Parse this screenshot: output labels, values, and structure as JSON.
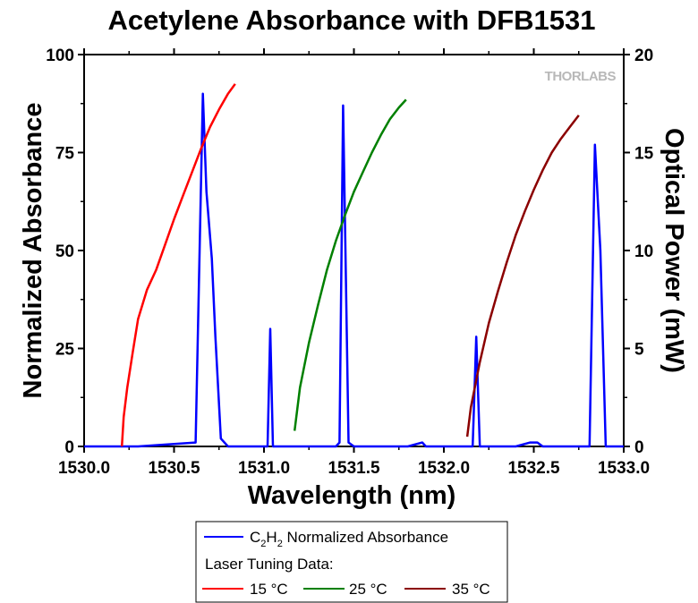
{
  "chart_data": {
    "type": "line",
    "title": "Acetylene Absorbance with DFB1531",
    "xlabel": "Wavelength (nm)",
    "ylabel": "Normalized Absorbance",
    "y2label": "Optical Power (mW)",
    "xlim": [
      1530.0,
      1533.0
    ],
    "ylim": [
      0,
      100
    ],
    "y2lim": [
      0,
      20
    ],
    "xticks": [
      1530.0,
      1530.5,
      1531.0,
      1531.5,
      1532.0,
      1532.5,
      1533.0
    ],
    "xtick_labels": [
      "1530.0",
      "1530.5",
      "1531.0",
      "1531.5",
      "1532.0",
      "1532.5",
      "1533.0"
    ],
    "yticks": [
      0,
      25,
      50,
      75,
      100
    ],
    "ytick_labels": [
      "0",
      "25",
      "50",
      "75",
      "100"
    ],
    "y2ticks": [
      0,
      5,
      10,
      15,
      20
    ],
    "y2tick_labels": [
      "0",
      "5",
      "10",
      "15",
      "20"
    ],
    "grid": false,
    "legend_position": "bottom-center",
    "logo": "THORLABS",
    "series": [
      {
        "name": "C2H2 Normalized Absorbance",
        "legend_main": "C",
        "legend_sub1": "2",
        "legend_mid": "H",
        "legend_sub2": "2",
        "legend_rest": " Normalized Absorbance",
        "color": "#0000ff",
        "axis": "left",
        "x": [
          1530.0,
          1530.1,
          1530.2,
          1530.3,
          1530.62,
          1530.66,
          1530.68,
          1530.71,
          1530.73,
          1530.76,
          1530.8,
          1530.85,
          1531.0,
          1531.02,
          1531.035,
          1531.05,
          1531.1,
          1531.2,
          1531.3,
          1531.36,
          1531.4,
          1531.42,
          1531.44,
          1531.47,
          1531.5,
          1531.55,
          1531.6,
          1531.65,
          1531.7,
          1531.8,
          1531.88,
          1531.9,
          1531.95,
          1531.98,
          1532.1,
          1532.14,
          1532.16,
          1532.18,
          1532.2,
          1532.25,
          1532.3,
          1532.4,
          1532.48,
          1532.5,
          1532.52,
          1532.55,
          1532.6,
          1532.7,
          1532.75,
          1532.78,
          1532.81,
          1532.84,
          1532.87,
          1532.9,
          1532.95,
          1533.0
        ],
        "y": [
          0,
          0,
          0,
          0,
          1,
          90,
          65,
          48,
          28,
          2,
          0,
          0,
          0,
          0,
          30,
          0,
          0,
          0,
          0,
          0,
          0,
          1,
          87,
          1,
          0,
          0,
          0,
          0,
          0,
          0,
          1,
          0,
          0,
          0,
          0,
          0,
          0,
          28,
          0,
          0,
          0,
          0,
          1,
          1,
          1,
          0,
          0,
          0,
          0,
          0,
          0,
          77,
          50,
          0,
          0,
          0
        ]
      },
      {
        "name": "15 °C",
        "color": "#ff0000",
        "axis": "right",
        "x": [
          1530.21,
          1530.22,
          1530.24,
          1530.27,
          1530.3,
          1530.35,
          1530.4,
          1530.45,
          1530.5,
          1530.55,
          1530.6,
          1530.65,
          1530.7,
          1530.75,
          1530.8,
          1530.84
        ],
        "y": [
          0,
          1.5,
          3.0,
          4.8,
          6.5,
          8.0,
          9.0,
          10.3,
          11.6,
          12.8,
          14.0,
          15.2,
          16.3,
          17.2,
          18.0,
          18.5
        ]
      },
      {
        "name": "25 °C",
        "color": "#008000",
        "axis": "right",
        "x": [
          1531.17,
          1531.2,
          1531.25,
          1531.3,
          1531.35,
          1531.4,
          1531.45,
          1531.5,
          1531.55,
          1531.6,
          1531.65,
          1531.7,
          1531.75,
          1531.79
        ],
        "y": [
          0.8,
          3.0,
          5.3,
          7.2,
          9.0,
          10.5,
          11.8,
          13.0,
          14.0,
          15.0,
          15.9,
          16.7,
          17.3,
          17.7
        ]
      },
      {
        "name": "35 °C",
        "color": "#8b0000",
        "axis": "right",
        "x": [
          1532.13,
          1532.15,
          1532.2,
          1532.25,
          1532.3,
          1532.35,
          1532.4,
          1532.45,
          1532.5,
          1532.55,
          1532.6,
          1532.65,
          1532.7,
          1532.75
        ],
        "y": [
          0.5,
          2.0,
          4.3,
          6.3,
          7.9,
          9.4,
          10.8,
          12.0,
          13.1,
          14.1,
          15.0,
          15.7,
          16.3,
          16.9
        ]
      }
    ],
    "legend": {
      "header": "Laser Tuning Data:",
      "tuning_labels": [
        "15 °C",
        "25 °C",
        "35 °C"
      ]
    }
  }
}
